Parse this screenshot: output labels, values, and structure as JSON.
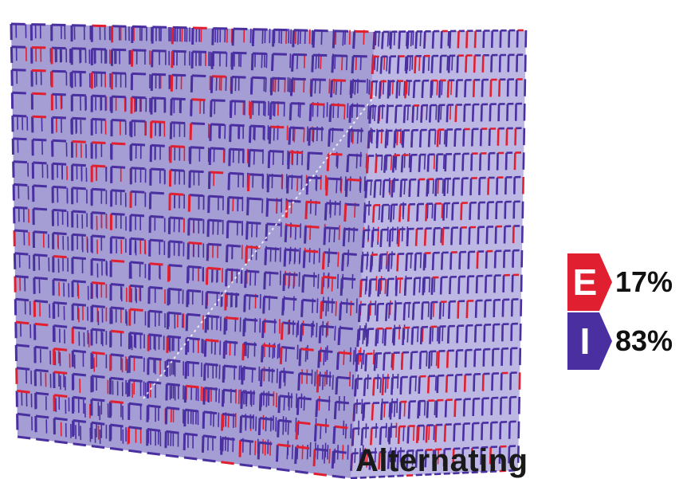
{
  "colors": {
    "excitatory": "#e02030",
    "inhibitory": "#4a2fa0",
    "background": "#ffffff",
    "text": "#111111"
  },
  "cube": {
    "grid_size": 18,
    "excitatory_fraction": 0.17,
    "pattern": "Alternating"
  },
  "legend": [
    {
      "letter": "E",
      "percent": "17%",
      "color": "#e02030"
    },
    {
      "letter": "I",
      "percent": "83%",
      "color": "#4a2fa0"
    }
  ],
  "caption": "Alternating"
}
